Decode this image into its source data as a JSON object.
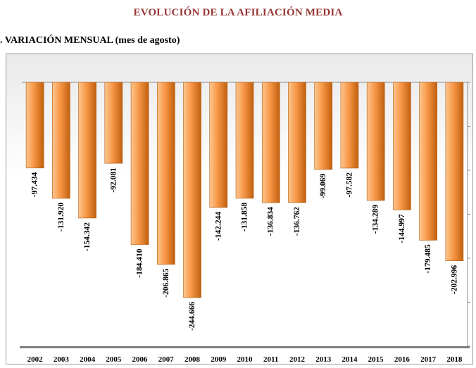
{
  "page_title": "EVOLUCIÓN DE LA AFILIACIÓN MEDIA",
  "section_title": ". VARIACIÓN MENSUAL (mes de agosto)",
  "colors": {
    "bar_light": "#fcc790",
    "bar_mid": "#f79646",
    "bar_dark": "#c0600e",
    "title": "#953735"
  },
  "chart_data": {
    "type": "bar",
    "title": "",
    "xlabel": "",
    "ylabel": "",
    "ylim": [
      -300000,
      0
    ],
    "grid": false,
    "categories": [
      "2002",
      "2003",
      "2004",
      "2005",
      "2006",
      "2007",
      "2008",
      "2009",
      "2010",
      "2011",
      "2012",
      "2013",
      "2014",
      "2015",
      "2016",
      "2017",
      "2018"
    ],
    "values": [
      -97434,
      -131920,
      -154342,
      -92081,
      -184410,
      -206865,
      -244666,
      -142244,
      -131858,
      -136834,
      -136762,
      -99069,
      -97582,
      -134289,
      -144997,
      -179485,
      -202996
    ],
    "labels": [
      "-97.434",
      "-131.920",
      "-154.342",
      "-92.081",
      "-184.410",
      "-206.865",
      "-244.666",
      "-142.244",
      "-131.858",
      "-136.834",
      "-136.762",
      "-99.069",
      "-97.582",
      "-134.289",
      "-144.997",
      "-179.485",
      "-202.996"
    ]
  }
}
